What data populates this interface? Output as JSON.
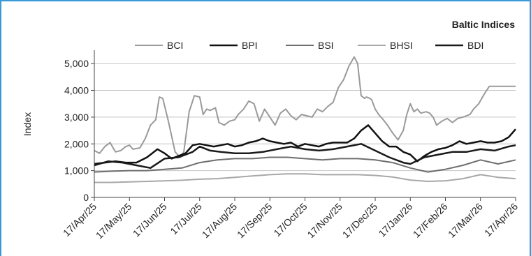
{
  "chart_data": {
    "type": "line",
    "title": "Baltic Indices",
    "ylabel": "Index",
    "xlabel": "",
    "ylim": [
      0,
      5500
    ],
    "yticks": [
      0,
      1000,
      2000,
      3000,
      4000,
      5000
    ],
    "ytick_labels": [
      "0",
      "1,000",
      "2,000",
      "3,000",
      "4,000",
      "5,000"
    ],
    "xlim": [
      0,
      12
    ],
    "xticks": [
      0,
      1,
      2,
      3,
      4,
      5,
      6,
      7,
      8,
      9,
      10,
      11,
      12
    ],
    "xtick_labels": [
      "17/Apr/25",
      "17/May/25",
      "17/Jun/25",
      "17/Jul/25",
      "17/Aug/25",
      "17/Sep/25",
      "17/Oct/25",
      "17/Nov/25",
      "17/Dec/25",
      "17/Jan/26",
      "17/Feb/26",
      "17/Mar/26",
      "17/Apr/26"
    ],
    "grid": true,
    "legend": "top",
    "series": [
      {
        "name": "BCI",
        "color": "#9a9a9a",
        "width": 2,
        "x": [
          0,
          0.15,
          0.3,
          0.45,
          0.6,
          0.75,
          0.9,
          1.0,
          1.1,
          1.3,
          1.45,
          1.6,
          1.75,
          1.85,
          1.95,
          2.1,
          2.2,
          2.3,
          2.45,
          2.55,
          2.7,
          2.85,
          3.0,
          3.1,
          3.2,
          3.3,
          3.45,
          3.55,
          3.7,
          3.85,
          4.0,
          4.1,
          4.25,
          4.4,
          4.55,
          4.7,
          4.85,
          5.0,
          5.15,
          5.3,
          5.45,
          5.6,
          5.75,
          5.9,
          6.05,
          6.2,
          6.35,
          6.5,
          6.65,
          6.8,
          6.95,
          7.1,
          7.25,
          7.4,
          7.5,
          7.6,
          7.7,
          7.75,
          7.85,
          7.9,
          8.0,
          8.1,
          8.2,
          8.35,
          8.5,
          8.65,
          8.8,
          8.9,
          9.0,
          9.1,
          9.2,
          9.3,
          9.45,
          9.55,
          9.65,
          9.75,
          9.9,
          10.05,
          10.2,
          10.35,
          10.5,
          10.6,
          10.7,
          10.8,
          10.95,
          11.1,
          11.25,
          11.4,
          11.55,
          11.7,
          11.8,
          11.9,
          12.0
        ],
        "values": [
          1750,
          1650,
          1900,
          2050,
          1700,
          1750,
          1900,
          1950,
          1800,
          1850,
          2200,
          2700,
          2900,
          3750,
          3700,
          2900,
          2300,
          1700,
          1500,
          1700,
          3200,
          3800,
          3750,
          3100,
          3300,
          3250,
          3350,
          2800,
          2700,
          2850,
          2900,
          3100,
          3300,
          3600,
          3500,
          2850,
          3300,
          3000,
          2700,
          3150,
          3300,
          3050,
          2900,
          3100,
          3050,
          3000,
          3300,
          3200,
          3400,
          3550,
          4100,
          4400,
          4900,
          5250,
          5000,
          3800,
          3700,
          3750,
          3700,
          3650,
          3300,
          3100,
          2950,
          2700,
          2400,
          2150,
          2500,
          3100,
          3500,
          3200,
          3300,
          3150,
          3200,
          3150,
          3000,
          2700,
          2850,
          2950,
          2800,
          2950,
          3000,
          3050,
          3100,
          3300,
          3500,
          3850,
          4150,
          4150,
          4150,
          4150,
          4150,
          4150,
          4150
        ]
      },
      {
        "name": "BPI",
        "color": "#111111",
        "width": 2.5,
        "x": [
          0,
          0.3,
          0.6,
          0.9,
          1.2,
          1.5,
          1.8,
          2.0,
          2.2,
          2.4,
          2.6,
          2.8,
          3.0,
          3.2,
          3.4,
          3.6,
          3.8,
          4.0,
          4.2,
          4.4,
          4.6,
          4.8,
          5.0,
          5.2,
          5.4,
          5.6,
          5.8,
          6.0,
          6.2,
          6.4,
          6.6,
          6.8,
          7.0,
          7.2,
          7.4,
          7.6,
          7.8,
          8.0,
          8.2,
          8.4,
          8.6,
          8.8,
          9.0,
          9.2,
          9.4,
          9.6,
          9.8,
          10.0,
          10.2,
          10.4,
          10.6,
          10.8,
          11.0,
          11.2,
          11.4,
          11.6,
          11.8,
          12.0
        ],
        "values": [
          1250,
          1300,
          1350,
          1300,
          1300,
          1500,
          1800,
          1650,
          1450,
          1550,
          1650,
          1950,
          2000,
          1950,
          1900,
          1950,
          2000,
          1900,
          1950,
          2050,
          2100,
          2200,
          2100,
          2050,
          2000,
          2050,
          1900,
          2000,
          1950,
          1900,
          2000,
          2050,
          2050,
          2050,
          2200,
          2500,
          2700,
          2400,
          2100,
          1900,
          1900,
          1700,
          1600,
          1350,
          1550,
          1700,
          1800,
          1850,
          1950,
          2100,
          2000,
          2050,
          2100,
          2050,
          2050,
          2100,
          2250,
          2550
        ]
      },
      {
        "name": "BSI",
        "color": "#6e6e6e",
        "width": 2,
        "x": [
          0,
          0.5,
          1.0,
          1.5,
          2.0,
          2.5,
          3.0,
          3.5,
          4.0,
          4.5,
          5.0,
          5.5,
          6.0,
          6.5,
          7.0,
          7.5,
          8.0,
          8.5,
          9.0,
          9.5,
          10.0,
          10.5,
          11.0,
          11.5,
          12.0
        ],
        "values": [
          950,
          980,
          1000,
          1000,
          1050,
          1100,
          1300,
          1400,
          1450,
          1450,
          1500,
          1500,
          1450,
          1400,
          1450,
          1450,
          1400,
          1300,
          1100,
          950,
          1050,
          1200,
          1400,
          1250,
          1400
        ]
      },
      {
        "name": "BHSI",
        "color": "#a8a8a8",
        "width": 2,
        "x": [
          0,
          0.5,
          1.0,
          1.5,
          2.0,
          2.5,
          3.0,
          3.5,
          4.0,
          4.5,
          5.0,
          5.5,
          6.0,
          6.5,
          7.0,
          7.5,
          8.0,
          8.5,
          9.0,
          9.5,
          10.0,
          10.5,
          11.0,
          11.5,
          12.0
        ],
        "values": [
          560,
          560,
          580,
          600,
          620,
          640,
          680,
          700,
          750,
          800,
          850,
          880,
          880,
          850,
          850,
          850,
          820,
          760,
          650,
          600,
          620,
          700,
          850,
          750,
          700
        ]
      },
      {
        "name": "BDI",
        "color": "#1a1a1a",
        "width": 2.5,
        "x": [
          0,
          0.4,
          0.8,
          1.2,
          1.6,
          2.0,
          2.4,
          2.8,
          3.0,
          3.3,
          3.6,
          4.0,
          4.4,
          4.8,
          5.2,
          5.6,
          6.0,
          6.4,
          6.8,
          7.2,
          7.6,
          8.0,
          8.4,
          8.8,
          9.0,
          9.4,
          9.8,
          10.2,
          10.6,
          11.0,
          11.4,
          11.8,
          12.0
        ],
        "values": [
          1200,
          1350,
          1300,
          1200,
          1100,
          1450,
          1500,
          1700,
          1900,
          1750,
          1700,
          1650,
          1650,
          1700,
          1800,
          1900,
          1800,
          1750,
          1800,
          1900,
          2000,
          1750,
          1500,
          1300,
          1250,
          1500,
          1600,
          1700,
          1700,
          1800,
          1750,
          1900,
          1950
        ]
      }
    ]
  }
}
